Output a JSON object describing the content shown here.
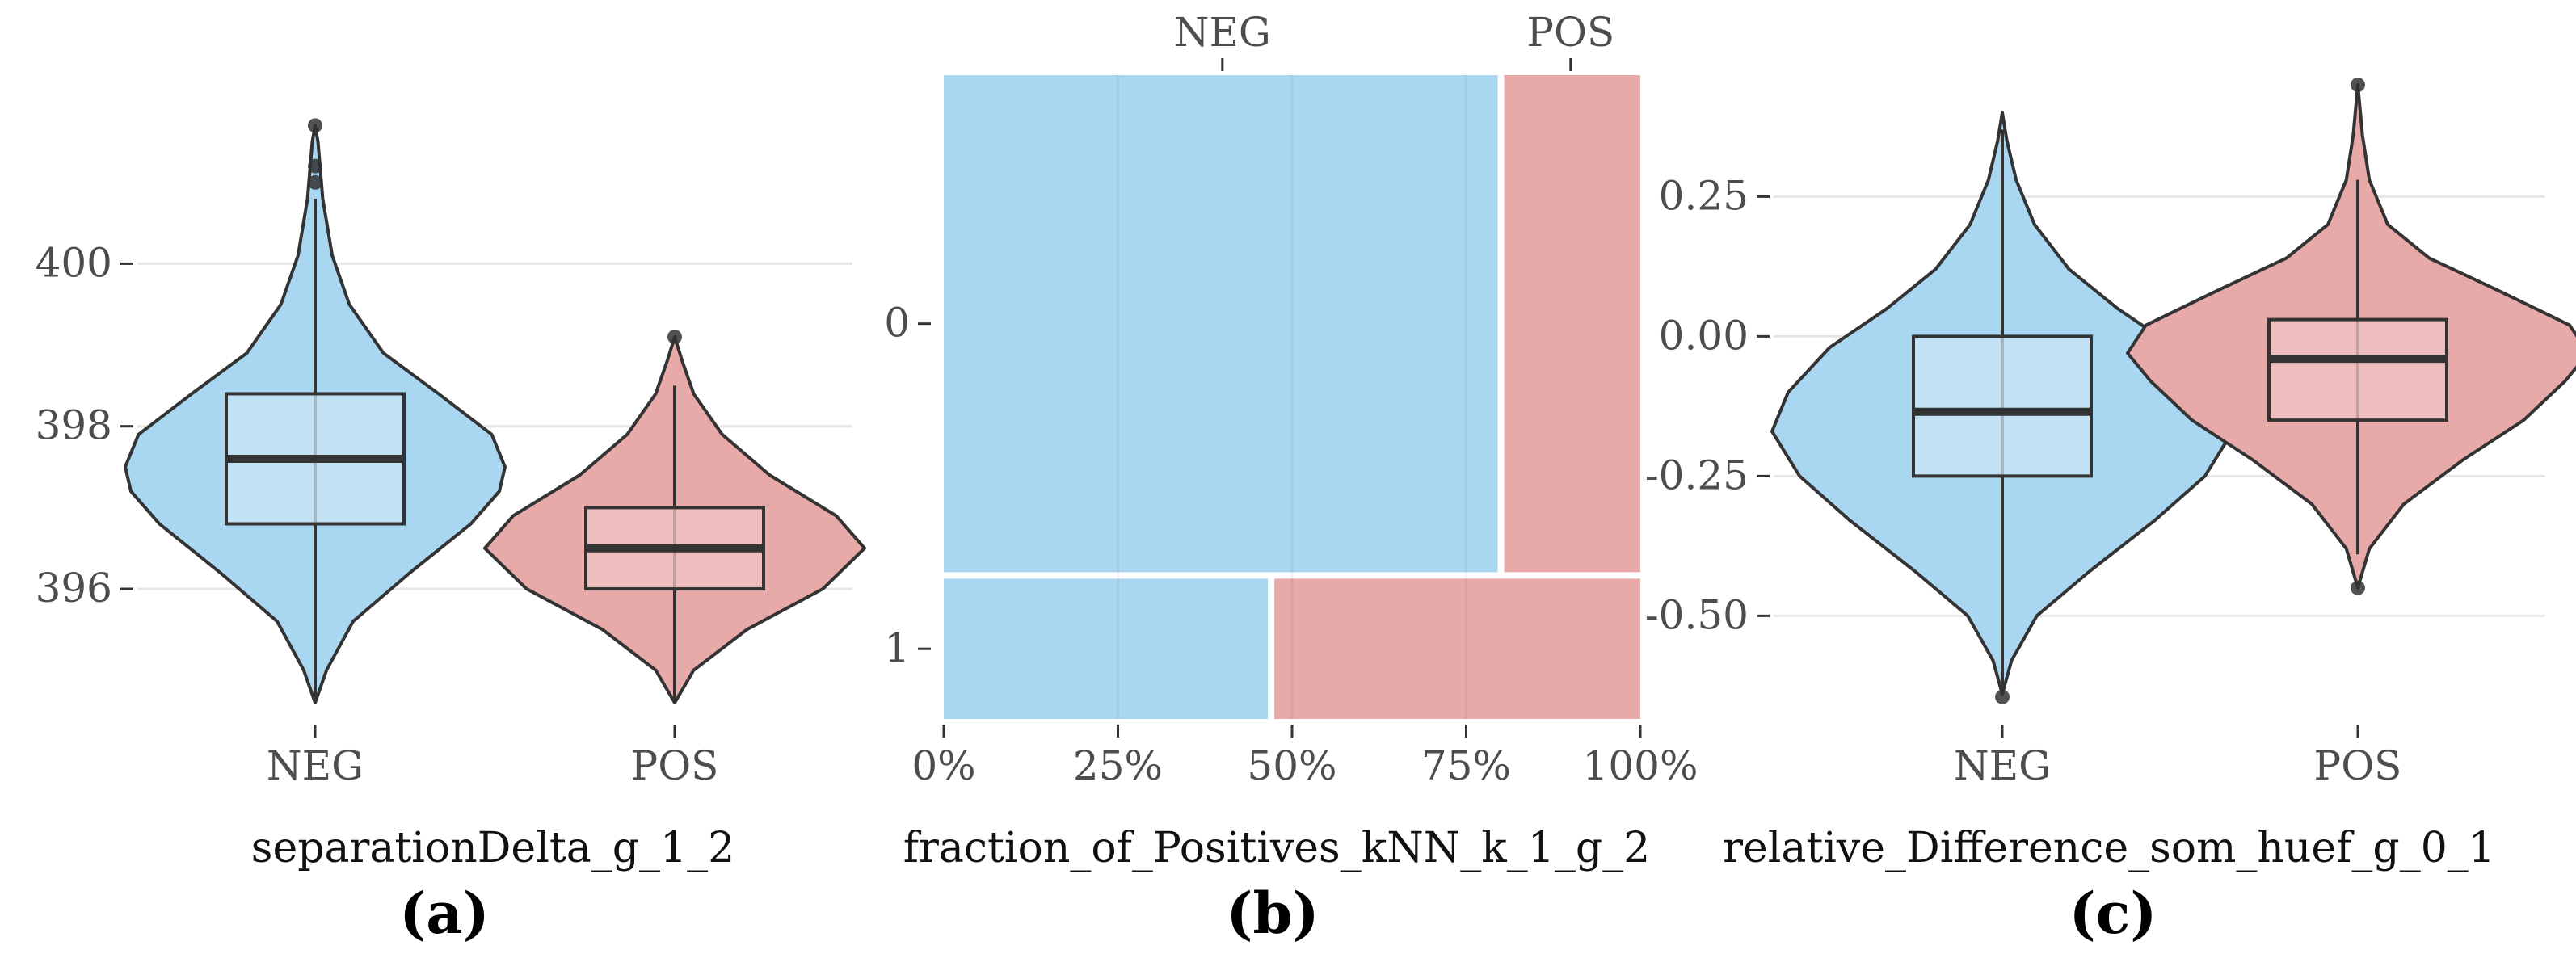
{
  "colors": {
    "neg": "#a9d7f2",
    "pos": "#e8a9a9",
    "neg_box": "#cce6f6",
    "pos_box": "#f1c6c6",
    "outline": "#333333"
  },
  "panels": [
    "(a)",
    "(b)",
    "(c)"
  ],
  "chart_data": [
    {
      "type": "violin",
      "panel": "(a)",
      "xlabel": "separationDelta_g_1_2",
      "categories": [
        "NEG",
        "POS"
      ],
      "y_ticks": [
        "396",
        "398",
        "400"
      ],
      "ylim": [
        394.5,
        402.2
      ],
      "grid": true,
      "series": [
        {
          "name": "NEG",
          "box": {
            "q1": 396.8,
            "median": 397.6,
            "q3": 398.4,
            "whisker_low": 394.6,
            "whisker_high": 400.8
          },
          "outliers": [
            401.0,
            401.2,
            401.7
          ],
          "density": [
            [
              394.6,
              0.0
            ],
            [
              395.0,
              0.06
            ],
            [
              395.6,
              0.2
            ],
            [
              396.2,
              0.5
            ],
            [
              396.8,
              0.82
            ],
            [
              397.2,
              0.97
            ],
            [
              397.5,
              1.0
            ],
            [
              397.9,
              0.93
            ],
            [
              398.4,
              0.65
            ],
            [
              398.9,
              0.36
            ],
            [
              399.5,
              0.18
            ],
            [
              400.1,
              0.09
            ],
            [
              400.8,
              0.04
            ],
            [
              401.5,
              0.015
            ],
            [
              401.7,
              0.0
            ]
          ]
        },
        {
          "name": "POS",
          "box": {
            "q1": 396.0,
            "median": 396.5,
            "q3": 397.0,
            "whisker_low": 394.6,
            "whisker_high": 398.5
          },
          "outliers": [
            399.1
          ],
          "density": [
            [
              394.6,
              0.0
            ],
            [
              395.0,
              0.1
            ],
            [
              395.5,
              0.38
            ],
            [
              396.0,
              0.78
            ],
            [
              396.5,
              1.0
            ],
            [
              396.9,
              0.85
            ],
            [
              397.4,
              0.5
            ],
            [
              397.9,
              0.25
            ],
            [
              398.4,
              0.1
            ],
            [
              398.8,
              0.04
            ],
            [
              399.1,
              0.0
            ]
          ]
        }
      ]
    },
    {
      "type": "mosaic",
      "panel": "(b)",
      "xlabel": "fraction_of_Positives_kNN_k_1_g_2",
      "x_ticks": [
        "0%",
        "25%",
        "50%",
        "75%",
        "100%"
      ],
      "top_labels": [
        "NEG",
        "POS"
      ],
      "rows": [
        {
          "label": "0",
          "proportion": 0.78,
          "neg_fraction": 0.8
        },
        {
          "label": "1",
          "proportion": 0.22,
          "neg_fraction": 0.47
        }
      ]
    },
    {
      "type": "violin",
      "panel": "(c)",
      "xlabel": "relative_Difference_som_huef_g_0_1",
      "categories": [
        "NEG",
        "POS"
      ],
      "y_ticks": [
        "-0.50",
        "-0.25",
        "0.00",
        "0.25"
      ],
      "ylim": [
        -0.67,
        0.45
      ],
      "grid": true,
      "series": [
        {
          "name": "NEG",
          "box": {
            "q1": -0.25,
            "median": -0.135,
            "q3": 0.0,
            "whisker_low": -0.63,
            "whisker_high": 0.37
          },
          "outliers": [
            -0.645
          ],
          "density": [
            [
              -0.64,
              0.0
            ],
            [
              -0.58,
              0.04
            ],
            [
              -0.5,
              0.15
            ],
            [
              -0.42,
              0.38
            ],
            [
              -0.33,
              0.66
            ],
            [
              -0.25,
              0.88
            ],
            [
              -0.17,
              1.0
            ],
            [
              -0.1,
              0.93
            ],
            [
              -0.02,
              0.75
            ],
            [
              0.05,
              0.5
            ],
            [
              0.12,
              0.29
            ],
            [
              0.2,
              0.14
            ],
            [
              0.28,
              0.06
            ],
            [
              0.35,
              0.02
            ],
            [
              0.4,
              0.0
            ]
          ]
        },
        {
          "name": "POS",
          "box": {
            "q1": -0.15,
            "median": -0.04,
            "q3": 0.03,
            "whisker_low": -0.39,
            "whisker_high": 0.28
          },
          "outliers": [
            -0.45,
            0.45
          ],
          "density": [
            [
              -0.45,
              0.0
            ],
            [
              -0.38,
              0.05
            ],
            [
              -0.3,
              0.2
            ],
            [
              -0.22,
              0.46
            ],
            [
              -0.15,
              0.72
            ],
            [
              -0.08,
              0.9
            ],
            [
              -0.03,
              1.0
            ],
            [
              0.02,
              0.92
            ],
            [
              0.08,
              0.62
            ],
            [
              0.14,
              0.31
            ],
            [
              0.2,
              0.13
            ],
            [
              0.28,
              0.05
            ],
            [
              0.36,
              0.02
            ],
            [
              0.45,
              0.0
            ]
          ]
        }
      ]
    }
  ]
}
